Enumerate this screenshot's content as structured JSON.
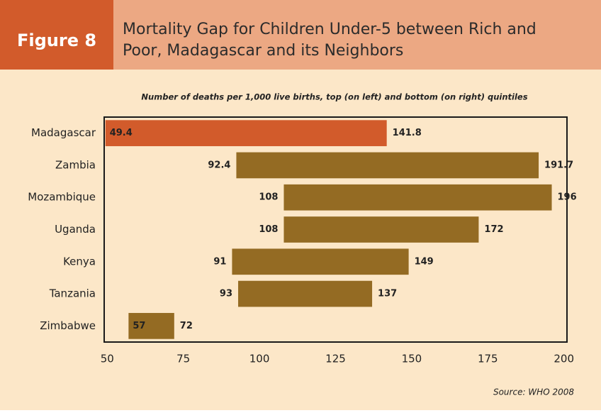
{
  "header": {
    "figure_label": "Figure 8"
  },
  "chart_data": {
    "type": "range_bar",
    "title_lines": [
      "Mortality Gap for Children Under-5 between Rich and",
      "Poor, Madagascar and its Neighbors"
    ],
    "subtitle": "Number of deaths per 1,000 live births, top (on left) and bottom (on right) quintiles",
    "source": "Source: WHO 2008",
    "categories": [
      "Madagascar",
      "Zambia",
      "Mozambique",
      "Uganda",
      "Kenya",
      "Tanzania",
      "Zimbabwe"
    ],
    "low_values": [
      49.4,
      92.4,
      108,
      108,
      91,
      93,
      57
    ],
    "high_values": [
      141.8,
      191.7,
      196,
      172,
      149,
      137,
      72
    ],
    "colors": [
      "#d25b2b",
      "#946b23",
      "#946b23",
      "#946b23",
      "#946b23",
      "#946b23",
      "#946b23"
    ],
    "xlim": [
      49,
      201
    ],
    "xticks": [
      50,
      75,
      100,
      125,
      150,
      175,
      200
    ],
    "grid": false
  }
}
